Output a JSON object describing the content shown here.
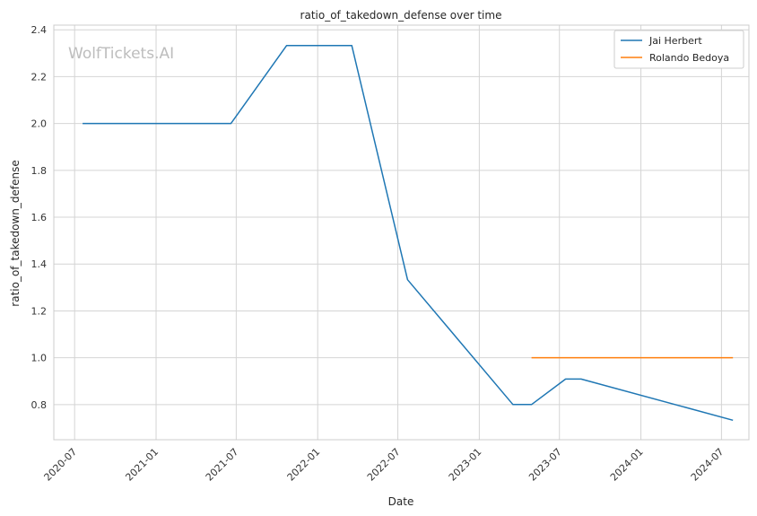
{
  "chart_data": {
    "type": "line",
    "title": "ratio_of_takedown_defense over time",
    "xlabel": "Date",
    "ylabel": "ratio_of_takedown_defense",
    "watermark": "WolfTickets.AI",
    "grid": true,
    "legend_position": "top-right",
    "ylim": [
      0.65,
      2.42
    ],
    "xlim": [
      "2020-05-15",
      "2024-09-01"
    ],
    "y_ticks": [
      0.8,
      1.0,
      1.2,
      1.4,
      1.6,
      1.8,
      2.0,
      2.2,
      2.4
    ],
    "y_tick_labels": [
      "0.8",
      "1.0",
      "1.2",
      "1.4",
      "1.6",
      "1.8",
      "2.0",
      "2.2",
      "2.4"
    ],
    "x_ticks": [
      "2020-07-01",
      "2021-01-01",
      "2021-07-01",
      "2022-01-01",
      "2022-07-01",
      "2023-01-01",
      "2023-07-01",
      "2024-01-01",
      "2024-07-01"
    ],
    "x_tick_labels": [
      "2020-07",
      "2021-01",
      "2021-07",
      "2022-01",
      "2022-07",
      "2023-01",
      "2023-07",
      "2024-01",
      "2024-07"
    ],
    "series": [
      {
        "name": "Jai Herbert",
        "color": "#1f77b4",
        "points": [
          {
            "x": "2020-07-19",
            "y": 2.0
          },
          {
            "x": "2021-06-19",
            "y": 2.0
          },
          {
            "x": "2021-10-23",
            "y": 2.333
          },
          {
            "x": "2022-03-19",
            "y": 2.333
          },
          {
            "x": "2022-07-23",
            "y": 1.333
          },
          {
            "x": "2023-03-18",
            "y": 0.8
          },
          {
            "x": "2023-04-29",
            "y": 0.8
          },
          {
            "x": "2023-07-15",
            "y": 0.909
          },
          {
            "x": "2023-08-19",
            "y": 0.909
          },
          {
            "x": "2024-07-27",
            "y": 0.733
          }
        ]
      },
      {
        "name": "Rolando Bedoya",
        "color": "#ff7f0e",
        "points": [
          {
            "x": "2023-04-29",
            "y": 1.0
          },
          {
            "x": "2024-07-27",
            "y": 1.0
          }
        ]
      }
    ]
  }
}
